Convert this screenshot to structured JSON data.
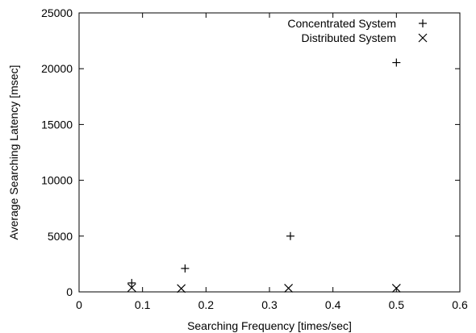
{
  "chart_data": {
    "type": "scatter",
    "title": "",
    "xlabel": "Searching Frequency [times/sec]",
    "ylabel": "Average Searching Latency [msec]",
    "xlim": [
      0,
      0.6
    ],
    "ylim": [
      0,
      25000
    ],
    "x_ticks": [
      0,
      0.1,
      0.2,
      0.3,
      0.4,
      0.5,
      0.6
    ],
    "x_tick_labels": [
      "0",
      "0.1",
      "0.2",
      "0.3",
      "0.4",
      "0.5",
      "0.6"
    ],
    "y_ticks": [
      0,
      5000,
      10000,
      15000,
      20000,
      25000
    ],
    "y_tick_labels": [
      "0",
      "5000",
      "10000",
      "15000",
      "20000",
      "25000"
    ],
    "grid": false,
    "legend_position": "top-right",
    "series": [
      {
        "name": "Concentrated System",
        "marker": "plus",
        "color": "#000000",
        "x": [
          0.083,
          0.167,
          0.333,
          0.5
        ],
        "y": [
          800,
          2100,
          5000,
          20550
        ]
      },
      {
        "name": "Distributed System",
        "marker": "cross",
        "color": "#000000",
        "x": [
          0.083,
          0.161,
          0.33,
          0.5
        ],
        "y": [
          380,
          300,
          330,
          330
        ]
      }
    ]
  }
}
